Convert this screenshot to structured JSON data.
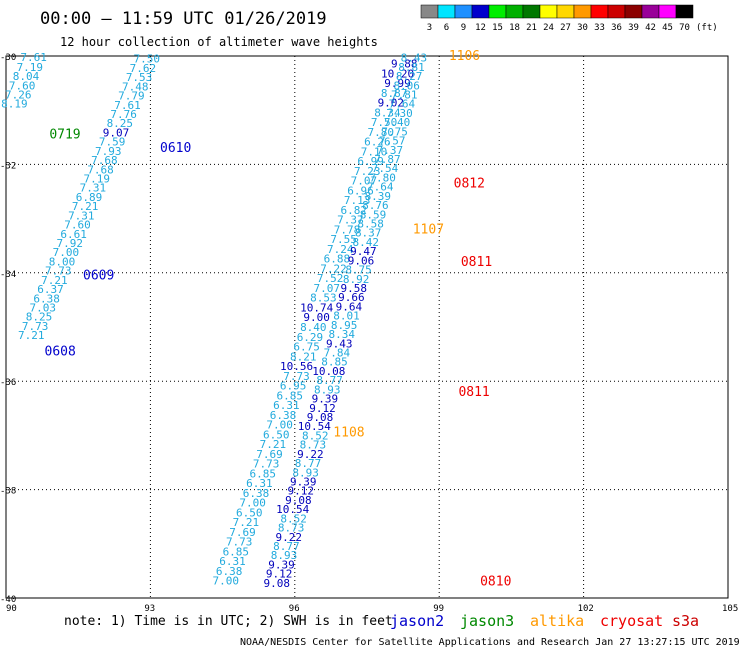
{
  "header": {
    "title": "00:00 – 11:59 UTC 01/26/2019",
    "subtitle": "12 hour collection of altimeter wave heights"
  },
  "colorscale": {
    "unit": "(ft)",
    "bins": [
      {
        "label": "3",
        "color": "#888888"
      },
      {
        "label": "6",
        "color": "#00e5ff"
      },
      {
        "label": "9",
        "color": "#1e90ff"
      },
      {
        "label": "12",
        "color": "#0000cc"
      },
      {
        "label": "15",
        "color": "#00ee00"
      },
      {
        "label": "18",
        "color": "#00b000"
      },
      {
        "label": "21",
        "color": "#007800"
      },
      {
        "label": "24",
        "color": "#ffff00"
      },
      {
        "label": "27",
        "color": "#ffd700"
      },
      {
        "label": "30",
        "color": "#ff9900"
      },
      {
        "label": "33",
        "color": "#ff0000"
      },
      {
        "label": "36",
        "color": "#cc0000"
      },
      {
        "label": "39",
        "color": "#8b0000"
      },
      {
        "label": "42",
        "color": "#990099"
      },
      {
        "label": "45",
        "color": "#ff00ff"
      },
      {
        "label": "70",
        "color": "#000000"
      }
    ]
  },
  "legend": {
    "note": "note: 1) Time is in UTC; 2) SWH is in feet",
    "satellites": [
      {
        "name": "jason2",
        "color": "#0000cc"
      },
      {
        "name": "jason3",
        "color": "#008800"
      },
      {
        "name": "altika",
        "color": "#ff9900"
      },
      {
        "name": "cryosat",
        "color": "#ee0000"
      },
      {
        "name": "s3a",
        "color": "#cc0000"
      }
    ]
  },
  "credit": "NOAA/NESDIS Center for Satellite Applications and Research    Jan 27 13:27:15 UTC 2019",
  "chart_data": {
    "type": "scatter",
    "title": "00:00 – 11:59 UTC 01/26/2019",
    "subtitle": "12 hour collection of altimeter wave heights",
    "xlim": [
      90,
      105
    ],
    "ylim": [
      -40,
      -30
    ],
    "xticks": [
      90,
      93,
      96,
      99,
      102,
      105
    ],
    "yticks": [
      -30,
      -32,
      -34,
      -36,
      -38,
      -40
    ],
    "grid": true,
    "color_light": "#22aadd",
    "color_dark": "#0000bb",
    "dark_threshold": 9,
    "tracks": [
      {
        "name": "track-0719",
        "pass_label": "0719",
        "label_color": "#008800",
        "label_at": [
          90.9,
          -31.45
        ],
        "points": [
          [
            90.85,
            -30.02
          ],
          [
            90.77,
            -30.2
          ],
          [
            90.69,
            -30.37
          ],
          [
            90.61,
            -30.54
          ],
          [
            90.53,
            -30.71
          ],
          [
            90.45,
            -30.88
          ]
        ],
        "values": [
          "7.61",
          "7.19",
          "8.04",
          "7.60",
          "7.26",
          "8.19"
        ]
      },
      {
        "name": "track-0610",
        "pass_label": "0610",
        "label_color": "#0000cc",
        "label_at": [
          93.2,
          -31.7
        ],
        "points": [
          [
            93.2,
            -30.05
          ],
          [
            93.12,
            -30.22
          ],
          [
            93.04,
            -30.39
          ],
          [
            92.96,
            -30.56
          ],
          [
            92.88,
            -30.73
          ],
          [
            92.8,
            -30.9
          ],
          [
            92.72,
            -31.07
          ],
          [
            92.64,
            -31.24
          ],
          [
            92.56,
            -31.41
          ],
          [
            92.48,
            -31.58
          ],
          [
            92.4,
            -31.75
          ],
          [
            92.32,
            -31.92
          ],
          [
            92.24,
            -32.09
          ],
          [
            92.16,
            -32.26
          ],
          [
            92.08,
            -32.43
          ],
          [
            92.0,
            -32.6
          ],
          [
            91.92,
            -32.77
          ],
          [
            91.84,
            -32.94
          ],
          [
            91.76,
            -33.11
          ],
          [
            91.68,
            -33.28
          ],
          [
            91.6,
            -33.45
          ],
          [
            91.52,
            -33.62
          ],
          [
            91.44,
            -33.79
          ],
          [
            91.36,
            -33.96
          ]
        ],
        "values": [
          "7.50",
          "7.62",
          "7.53",
          "7.48",
          "7.79",
          "7.61",
          "7.76",
          "8.25",
          "9.07",
          "7.59",
          "7.93",
          "7.68",
          "7.68",
          "7.19",
          "7.31",
          "6.89",
          "7.21",
          "7.31",
          "7.60",
          "6.61",
          "7.92",
          "7.00",
          "8.00",
          "7.73"
        ]
      },
      {
        "name": "track-0609",
        "pass_label": "0609",
        "label_color": "#0000cc",
        "label_at": [
          91.6,
          -34.05
        ],
        "points": [
          [
            91.28,
            -34.13
          ],
          [
            91.2,
            -34.3
          ],
          [
            91.12,
            -34.47
          ],
          [
            91.04,
            -34.64
          ],
          [
            90.96,
            -34.81
          ],
          [
            90.88,
            -34.98
          ],
          [
            90.8,
            -35.15
          ]
        ],
        "values": [
          "7.21",
          "6.37",
          "6.38",
          "7.03",
          "8.25",
          "7.73",
          "7.21"
        ]
      },
      {
        "name": "track-0608",
        "pass_label": "0608",
        "label_color": "#0000cc",
        "label_at": [
          90.8,
          -35.45
        ],
        "points": [],
        "values": []
      },
      {
        "name": "track-1108",
        "pass_label": "1108",
        "label_color": "#ff9900",
        "label_at": [
          96.8,
          -36.95
        ],
        "points": [
          [
            98.55,
            -30.14
          ],
          [
            98.48,
            -30.32
          ],
          [
            98.41,
            -30.5
          ],
          [
            98.34,
            -30.68
          ],
          [
            98.27,
            -30.86
          ],
          [
            98.2,
            -31.04
          ],
          [
            98.13,
            -31.22
          ],
          [
            98.06,
            -31.4
          ],
          [
            97.99,
            -31.58
          ],
          [
            97.92,
            -31.76
          ],
          [
            97.85,
            -31.94
          ],
          [
            97.78,
            -32.12
          ],
          [
            97.71,
            -32.3
          ],
          [
            97.64,
            -32.48
          ],
          [
            97.57,
            -32.66
          ],
          [
            97.5,
            -32.84
          ],
          [
            97.43,
            -33.02
          ],
          [
            97.36,
            -33.2
          ],
          [
            97.29,
            -33.38
          ],
          [
            97.22,
            -33.56
          ],
          [
            97.15,
            -33.74
          ],
          [
            97.08,
            -33.92
          ],
          [
            97.01,
            -34.1
          ],
          [
            96.94,
            -34.28
          ],
          [
            96.87,
            -34.46
          ],
          [
            96.8,
            -34.64
          ],
          [
            96.73,
            -34.82
          ],
          [
            96.66,
            -35.0
          ],
          [
            96.59,
            -35.18
          ],
          [
            96.52,
            -35.36
          ],
          [
            96.45,
            -35.54
          ],
          [
            96.38,
            -35.72
          ],
          [
            96.31,
            -35.9
          ],
          [
            96.24,
            -36.08
          ],
          [
            96.17,
            -36.26
          ],
          [
            96.1,
            -36.44
          ],
          [
            96.03,
            -36.62
          ],
          [
            95.96,
            -36.8
          ],
          [
            95.89,
            -36.98
          ],
          [
            95.82,
            -37.16
          ],
          [
            95.75,
            -37.34
          ],
          [
            95.68,
            -37.52
          ],
          [
            95.61,
            -37.7
          ],
          [
            95.54,
            -37.88
          ],
          [
            95.47,
            -38.06
          ],
          [
            95.4,
            -38.24
          ],
          [
            95.33,
            -38.42
          ],
          [
            95.26,
            -38.6
          ],
          [
            95.19,
            -38.78
          ],
          [
            95.12,
            -38.96
          ],
          [
            95.05,
            -39.14
          ],
          [
            94.98,
            -39.32
          ],
          [
            94.91,
            -39.5
          ],
          [
            94.84,
            -39.68
          ]
        ],
        "values": [
          "9.88",
          "10.20",
          "9.99",
          "8.87",
          "9.02",
          "8.34",
          "7.50",
          "7.80",
          "6.26",
          "7.10",
          "6.99",
          "7.23",
          "7.07",
          "6.96",
          "7.13",
          "6.82",
          "7.37",
          "7.78",
          "7.55",
          "7.24",
          "6.88",
          "7.22",
          "7.52",
          "7.07",
          "8.53",
          "10.74",
          "9.00",
          "8.40",
          "6.29",
          "6.75",
          "8.21",
          "10.56",
          "7.73",
          "6.95",
          "6.85",
          "6.31",
          "6.38",
          "7.00",
          "6.50",
          "7.21",
          "7.69",
          "7.73",
          "6.85",
          "6.31",
          "6.38",
          "7.00",
          "6.50",
          "7.21",
          "7.69",
          "7.73",
          "6.85",
          "6.31",
          "6.38",
          "7.00"
        ]
      },
      {
        "name": "track-0811",
        "pass_label": "0811",
        "label_color": "#ee0000",
        "label_at": [
          99.4,
          -36.2
        ],
        "points": [
          [
            98.75,
            -30.03
          ],
          [
            98.7,
            -30.2
          ],
          [
            98.65,
            -30.37
          ],
          [
            98.6,
            -30.54
          ],
          [
            98.55,
            -30.71
          ],
          [
            98.5,
            -30.88
          ],
          [
            98.45,
            -31.05
          ],
          [
            98.4,
            -31.22
          ],
          [
            98.35,
            -31.39
          ],
          [
            98.3,
            -31.56
          ],
          [
            98.25,
            -31.73
          ],
          [
            98.2,
            -31.9
          ],
          [
            98.15,
            -32.07
          ],
          [
            98.1,
            -32.24
          ],
          [
            98.05,
            -32.41
          ],
          [
            98.0,
            -32.58
          ],
          [
            97.95,
            -32.75
          ],
          [
            97.9,
            -32.92
          ],
          [
            97.85,
            -33.09
          ],
          [
            97.8,
            -33.26
          ],
          [
            97.75,
            -33.43
          ],
          [
            97.7,
            -33.6
          ],
          [
            97.65,
            -33.77
          ],
          [
            97.6,
            -33.94
          ],
          [
            97.55,
            -34.11
          ],
          [
            97.5,
            -34.28
          ],
          [
            97.45,
            -34.45
          ],
          [
            97.4,
            -34.62
          ],
          [
            97.35,
            -34.79
          ],
          [
            97.3,
            -34.96
          ],
          [
            97.25,
            -35.13
          ],
          [
            97.2,
            -35.3
          ],
          [
            97.15,
            -35.47
          ],
          [
            97.1,
            -35.64
          ],
          [
            97.05,
            -35.81
          ],
          [
            97.0,
            -35.98
          ],
          [
            96.95,
            -36.15
          ],
          [
            96.9,
            -36.32
          ],
          [
            96.85,
            -36.49
          ],
          [
            96.8,
            -36.66
          ],
          [
            96.75,
            -36.83
          ],
          [
            96.7,
            -37.0
          ],
          [
            96.65,
            -37.17
          ],
          [
            96.6,
            -37.34
          ],
          [
            96.55,
            -37.51
          ],
          [
            96.5,
            -37.68
          ],
          [
            96.45,
            -37.85
          ],
          [
            96.4,
            -38.02
          ],
          [
            96.35,
            -38.19
          ],
          [
            96.3,
            -38.36
          ],
          [
            96.25,
            -38.53
          ],
          [
            96.2,
            -38.7
          ],
          [
            96.15,
            -38.87
          ],
          [
            96.1,
            -39.04
          ],
          [
            96.05,
            -39.21
          ],
          [
            96.0,
            -39.38
          ],
          [
            95.95,
            -39.55
          ],
          [
            95.9,
            -39.72
          ]
        ],
        "values": [
          "8.43",
          "8.81",
          "8.27",
          "8.06",
          "7.81",
          "7.64",
          "7.30",
          "7.40",
          "7.75",
          "7.57",
          "7.37",
          "7.87",
          "7.54",
          "7.80",
          "7.64",
          "8.39",
          "8.76",
          "8.59",
          "8.58",
          "8.37",
          "8.42",
          "9.47",
          "9.06",
          "8.75",
          "8.92",
          "9.58",
          "9.66",
          "9.64",
          "8.01",
          "8.95",
          "8.34",
          "9.43",
          "7.84",
          "8.85",
          "10.08",
          "8.77",
          "8.93",
          "9.39",
          "9.12",
          "9.08",
          "10.54",
          "8.52",
          "8.73",
          "9.22",
          "8.77",
          "8.93",
          "9.39",
          "9.12",
          "9.08",
          "10.54",
          "8.52",
          "8.73",
          "9.22",
          "8.77",
          "8.93",
          "9.39",
          "9.12",
          "9.08"
        ]
      },
      {
        "name": "track-1106",
        "pass_label": "1106",
        "label_color": "#ff9900",
        "label_at": [
          99.2,
          -30.0
        ],
        "points": [],
        "values": []
      },
      {
        "name": "track-0812",
        "pass_label": "0812",
        "label_color": "#ee0000",
        "label_at": [
          99.3,
          -32.35
        ],
        "points": [],
        "values": []
      },
      {
        "name": "track-1107",
        "pass_label": "1107",
        "label_color": "#ff9900",
        "label_at": [
          98.45,
          -33.2
        ],
        "points": [],
        "values": []
      },
      {
        "name": "track-0811b",
        "pass_label": "0811",
        "label_color": "#ee0000",
        "label_at": [
          99.45,
          -33.8
        ],
        "points": [],
        "values": []
      },
      {
        "name": "track-0810",
        "pass_label": "0810",
        "label_color": "#ee0000",
        "label_at": [
          99.85,
          -39.7
        ],
        "points": [],
        "values": []
      }
    ]
  }
}
